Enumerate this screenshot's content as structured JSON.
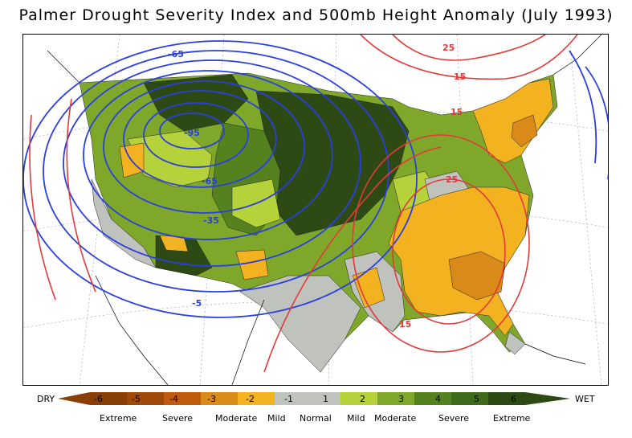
{
  "title": "Palmer Drought Severity Index and 500mb Height Anomaly (July 1993)",
  "contour_labels": {
    "neg": [
      "-65",
      "-95",
      "-65",
      "-35",
      "-5"
    ],
    "pos": [
      "25",
      "15",
      "15",
      "25",
      "15"
    ]
  },
  "colors": {
    "extreme_dry": "#8a3f06",
    "severe_dry": "#c05a0c",
    "moderate_dry": "#d98a18",
    "mild_dry": "#f3b21f",
    "normal": "#c0c2bd",
    "mild_wet": "#b6d23a",
    "moderate_wet": "#7fa82a",
    "severe_wet": "#55821f",
    "extreme_wet": "#2e4a14",
    "neg_contour": "#2a3fe0",
    "pos_contour": "#e23a3a"
  },
  "colorbar": {
    "dry_label": "DRY",
    "wet_label": "WET",
    "ticks": [
      "-6",
      "-5",
      "-4",
      "-3",
      "-2",
      "-1",
      "1",
      "2",
      "3",
      "4",
      "5",
      "6"
    ],
    "categories": [
      "Extreme",
      "Severe",
      "Moderate",
      "Mild",
      "Normal",
      "Mild",
      "Moderate",
      "Severe",
      "Extreme"
    ]
  }
}
